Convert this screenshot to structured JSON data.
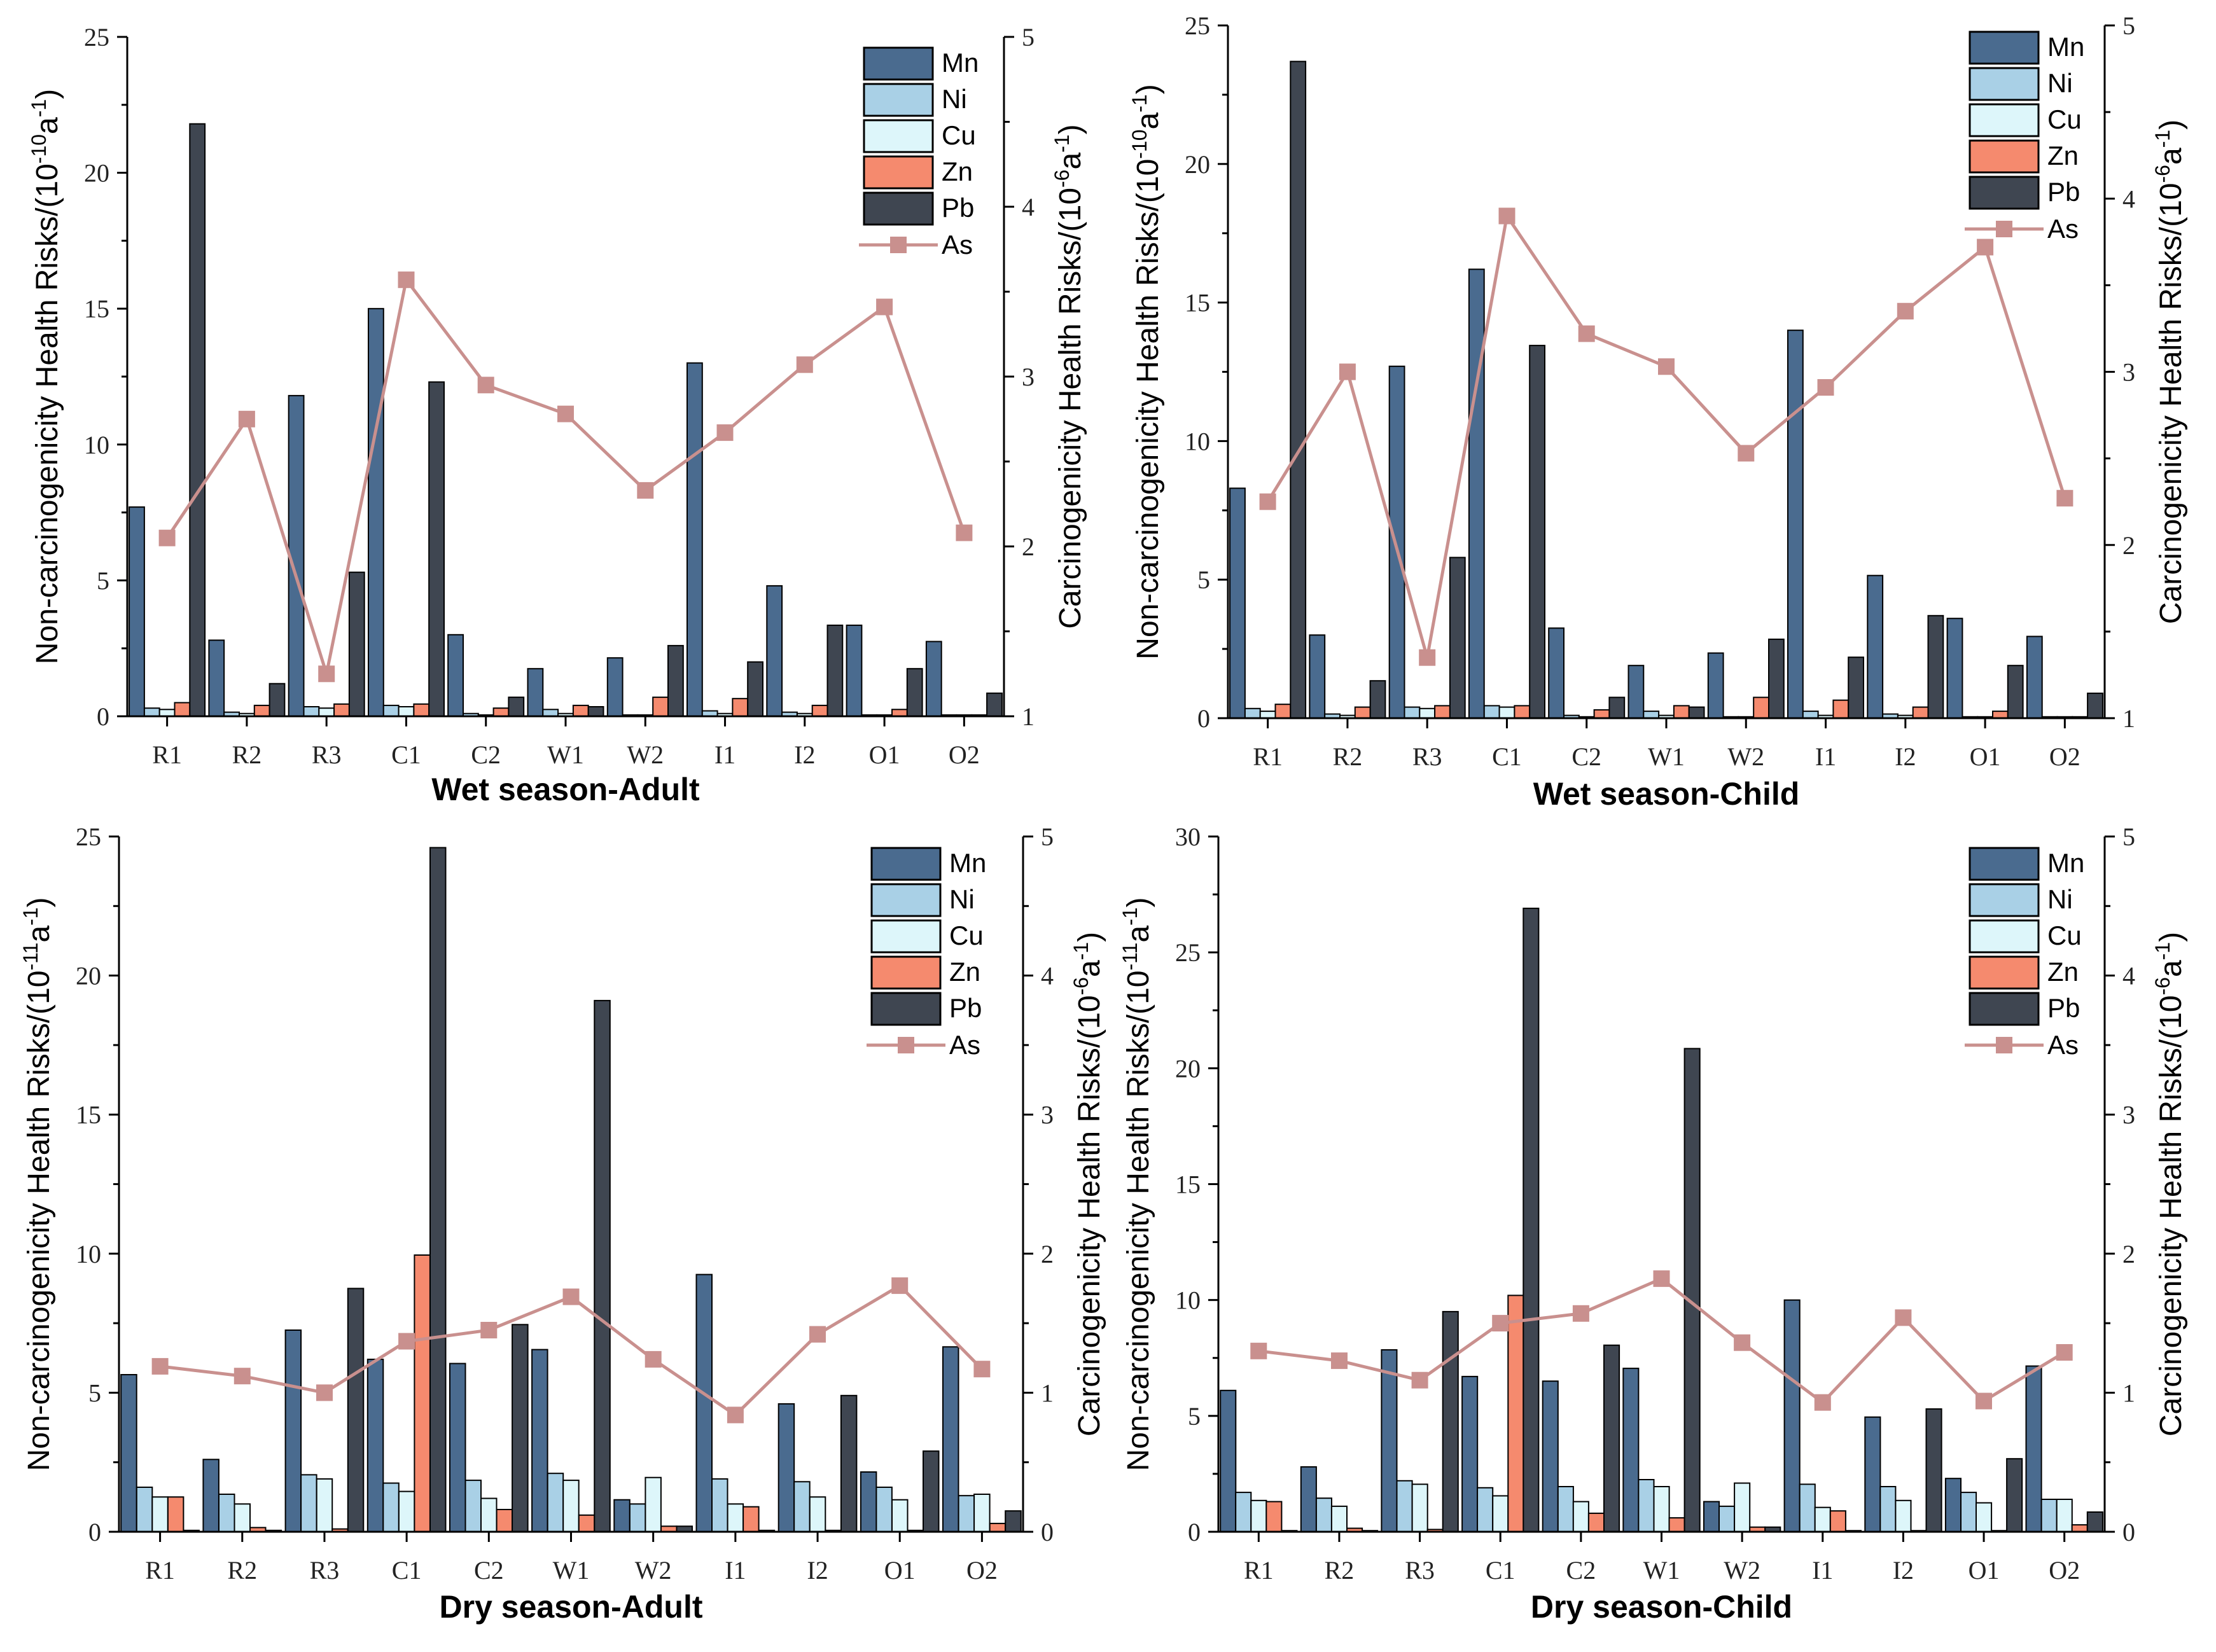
{
  "charts": [
    {
      "type": "bar+line",
      "title": "Wet season-Adult",
      "ylabel_left": "Non-carcinogenicity Health Risks/(10",
      "ylabel_left_exp": "-10",
      "ylabel_left_tail": "a",
      "ylabel_left_tail_exp": "-1",
      "ylabel_left_close": ")",
      "ylabel_right": "Carcinogenicity Health Risks/(10",
      "ylabel_right_exp": "-6",
      "ylabel_right_tail": "a",
      "ylabel_right_tail_exp": "-1",
      "ylabel_right_close": ")",
      "categories": [
        "R1",
        "R2",
        "R3",
        "C1",
        "C2",
        "W1",
        "W2",
        "I1",
        "I2",
        "O1",
        "O2"
      ],
      "ylim_left": [
        0,
        25
      ],
      "yticks_left": [
        0,
        5,
        10,
        15,
        20,
        25
      ],
      "ylim_right": [
        1,
        5
      ],
      "yticks_right": [
        1,
        2,
        3,
        4,
        5
      ],
      "series": [
        {
          "name": "Mn",
          "values": [
            7.7,
            2.8,
            11.8,
            15.0,
            3.0,
            1.75,
            2.15,
            13.0,
            4.8,
            3.35,
            2.75
          ]
        },
        {
          "name": "Ni",
          "values": [
            0.3,
            0.15,
            0.35,
            0.4,
            0.1,
            0.25,
            0.05,
            0.2,
            0.15,
            0.05,
            0.05
          ]
        },
        {
          "name": "Cu",
          "values": [
            0.25,
            0.1,
            0.3,
            0.35,
            0.05,
            0.1,
            0.05,
            0.1,
            0.1,
            0.05,
            0.05
          ]
        },
        {
          "name": "Zn",
          "values": [
            0.5,
            0.4,
            0.45,
            0.45,
            0.3,
            0.4,
            0.7,
            0.65,
            0.4,
            0.25,
            0.05
          ]
        },
        {
          "name": "Pb",
          "values": [
            21.8,
            1.2,
            5.3,
            12.3,
            0.7,
            0.35,
            2.6,
            2.0,
            3.35,
            1.75,
            0.85
          ]
        }
      ],
      "line_series": {
        "name": "As",
        "values": [
          2.05,
          2.75,
          1.25,
          3.57,
          2.95,
          2.78,
          2.33,
          2.67,
          3.07,
          3.41,
          2.08
        ]
      }
    },
    {
      "type": "bar+line",
      "title": "Wet season-Child",
      "ylabel_left": "Non-carcinogenicity Health Risks/(10",
      "ylabel_left_exp": "-10",
      "ylabel_left_tail": "a",
      "ylabel_left_tail_exp": "-1",
      "ylabel_left_close": ")",
      "ylabel_right": "Carcinogenicity Health Risks/(10",
      "ylabel_right_exp": "-6",
      "ylabel_right_tail": "a",
      "ylabel_right_tail_exp": "-1",
      "ylabel_right_close": ")",
      "categories": [
        "R1",
        "R2",
        "R3",
        "C1",
        "C2",
        "W1",
        "W2",
        "I1",
        "I2",
        "O1",
        "O2"
      ],
      "ylim_left": [
        0,
        25
      ],
      "yticks_left": [
        0,
        5,
        10,
        15,
        20,
        25
      ],
      "ylim_right": [
        1,
        5
      ],
      "yticks_right": [
        1,
        2,
        3,
        4,
        5
      ],
      "series": [
        {
          "name": "Mn",
          "values": [
            8.3,
            3.0,
            12.7,
            16.2,
            3.25,
            1.9,
            2.35,
            14.0,
            5.15,
            3.6,
            2.95
          ]
        },
        {
          "name": "Ni",
          "values": [
            0.35,
            0.15,
            0.4,
            0.45,
            0.1,
            0.25,
            0.05,
            0.25,
            0.15,
            0.05,
            0.05
          ]
        },
        {
          "name": "Cu",
          "values": [
            0.25,
            0.1,
            0.35,
            0.4,
            0.05,
            0.1,
            0.05,
            0.1,
            0.1,
            0.05,
            0.05
          ]
        },
        {
          "name": "Zn",
          "values": [
            0.5,
            0.4,
            0.45,
            0.45,
            0.3,
            0.45,
            0.75,
            0.65,
            0.4,
            0.25,
            0.05
          ]
        },
        {
          "name": "Pb",
          "values": [
            23.7,
            1.35,
            5.8,
            13.45,
            0.75,
            0.4,
            2.85,
            2.2,
            3.7,
            1.9,
            0.9
          ]
        }
      ],
      "line_series": {
        "name": "As",
        "values": [
          2.25,
          3.0,
          1.35,
          3.9,
          3.22,
          3.03,
          2.53,
          2.91,
          3.35,
          3.72,
          2.27
        ]
      }
    },
    {
      "type": "bar+line",
      "title": "Dry season-Adult",
      "ylabel_left": "Non-carcinogenicity Health Risks/(10",
      "ylabel_left_exp": "-11",
      "ylabel_left_tail": "a",
      "ylabel_left_tail_exp": "-1",
      "ylabel_left_close": ")",
      "ylabel_right": "Carcinogenicity Health Risks/(10",
      "ylabel_right_exp": "-6",
      "ylabel_right_tail": "a",
      "ylabel_right_tail_exp": "-1",
      "ylabel_right_close": ")",
      "categories": [
        "R1",
        "R2",
        "R3",
        "C1",
        "C2",
        "W1",
        "W2",
        "I1",
        "I2",
        "O1",
        "O2"
      ],
      "ylim_left": [
        0,
        25
      ],
      "yticks_left": [
        0,
        5,
        10,
        15,
        20,
        25
      ],
      "ylim_right": [
        0,
        5
      ],
      "yticks_right": [
        0,
        1,
        2,
        3,
        4,
        5
      ],
      "series": [
        {
          "name": "Mn",
          "values": [
            5.65,
            2.6,
            7.25,
            6.2,
            6.05,
            6.55,
            1.15,
            9.25,
            4.6,
            2.15,
            6.65
          ]
        },
        {
          "name": "Ni",
          "values": [
            1.6,
            1.35,
            2.05,
            1.75,
            1.85,
            2.1,
            1.0,
            1.9,
            1.8,
            1.6,
            1.3
          ]
        },
        {
          "name": "Cu",
          "values": [
            1.25,
            1.0,
            1.9,
            1.45,
            1.2,
            1.85,
            1.95,
            1.0,
            1.25,
            1.15,
            1.35
          ]
        },
        {
          "name": "Zn",
          "values": [
            1.25,
            0.15,
            0.1,
            9.95,
            0.8,
            0.6,
            0.2,
            0.9,
            0.05,
            0.05,
            0.3
          ]
        },
        {
          "name": "Pb",
          "values": [
            0.05,
            0.05,
            8.75,
            24.6,
            7.45,
            19.1,
            0.2,
            0.05,
            4.9,
            2.9,
            0.75
          ]
        }
      ],
      "line_series": {
        "name": "As",
        "values": [
          1.19,
          1.12,
          1.0,
          1.37,
          1.45,
          1.69,
          1.24,
          0.84,
          1.42,
          1.77,
          1.17
        ]
      }
    },
    {
      "type": "bar+line",
      "title": "Dry season-Child",
      "ylabel_left": "Non-carcinogenicity Health Risks/(10",
      "ylabel_left_exp": "-11",
      "ylabel_left_tail": "a",
      "ylabel_left_tail_exp": "-1",
      "ylabel_left_close": ")",
      "ylabel_right": "Carcinogenicity Health Risks/(10",
      "ylabel_right_exp": "-6",
      "ylabel_right_tail": "a",
      "ylabel_right_tail_exp": "-1",
      "ylabel_right_close": ")",
      "categories": [
        "R1",
        "R2",
        "R3",
        "C1",
        "C2",
        "W1",
        "W2",
        "I1",
        "I2",
        "O1",
        "O2"
      ],
      "ylim_left": [
        0,
        30
      ],
      "yticks_left": [
        0,
        5,
        10,
        15,
        20,
        25,
        30
      ],
      "ylim_right": [
        0,
        5
      ],
      "yticks_right": [
        0,
        1,
        2,
        3,
        4,
        5
      ],
      "series": [
        {
          "name": "Mn",
          "values": [
            6.1,
            2.8,
            7.85,
            6.7,
            6.5,
            7.05,
            1.3,
            10.0,
            4.95,
            2.3,
            7.15
          ]
        },
        {
          "name": "Ni",
          "values": [
            1.7,
            1.45,
            2.2,
            1.9,
            1.95,
            2.25,
            1.1,
            2.05,
            1.95,
            1.7,
            1.4
          ]
        },
        {
          "name": "Cu",
          "values": [
            1.35,
            1.1,
            2.05,
            1.55,
            1.3,
            1.95,
            2.1,
            1.05,
            1.35,
            1.25,
            1.4
          ]
        },
        {
          "name": "Zn",
          "values": [
            1.3,
            0.15,
            0.1,
            10.2,
            0.8,
            0.6,
            0.2,
            0.9,
            0.05,
            0.05,
            0.3
          ]
        },
        {
          "name": "Pb",
          "values": [
            0.05,
            0.05,
            9.5,
            26.9,
            8.05,
            20.85,
            0.2,
            0.05,
            5.3,
            3.15,
            0.85
          ]
        }
      ],
      "line_series": {
        "name": "As",
        "values": [
          1.3,
          1.23,
          1.09,
          1.5,
          1.57,
          1.82,
          1.36,
          0.93,
          1.54,
          0.94,
          1.29
        ]
      }
    }
  ],
  "colors": {
    "Mn": "#4a6b8f",
    "Ni": "#a9d0e6",
    "Cu": "#ddf6fa",
    "Zn": "#f58a6e",
    "Pb": "#3f4651",
    "As": "#c9908e",
    "axis": "#000000"
  }
}
